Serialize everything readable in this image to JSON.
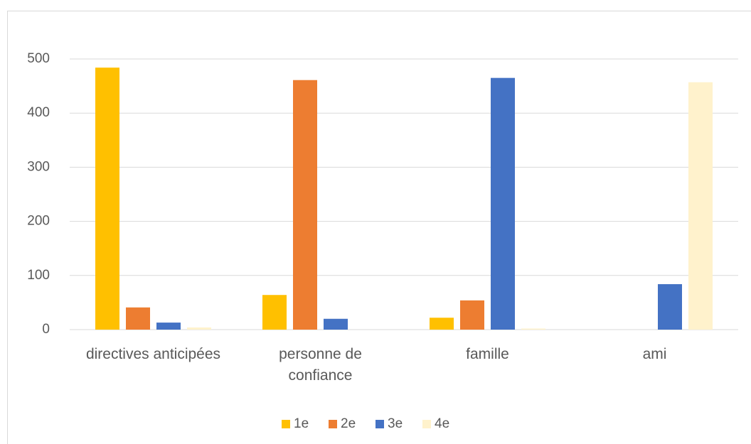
{
  "chart_data": {
    "type": "bar",
    "categories": [
      "directives anticipées",
      "personne de confiance",
      "famille",
      "ami"
    ],
    "series": [
      {
        "name": "1e",
        "color": "#ffc000",
        "values": [
          484,
          64,
          22,
          0
        ]
      },
      {
        "name": "2e",
        "color": "#ed7d31",
        "values": [
          41,
          461,
          54,
          0
        ]
      },
      {
        "name": "3e",
        "color": "#4472c4",
        "values": [
          13,
          20,
          465,
          84
        ]
      },
      {
        "name": "4e",
        "color": "#fff2cc",
        "values": [
          4,
          0,
          2,
          457
        ]
      }
    ],
    "ylim": [
      0,
      500
    ],
    "yticks": [
      0,
      100,
      200,
      300,
      400,
      500
    ],
    "grid": true,
    "legend": "bottom"
  }
}
